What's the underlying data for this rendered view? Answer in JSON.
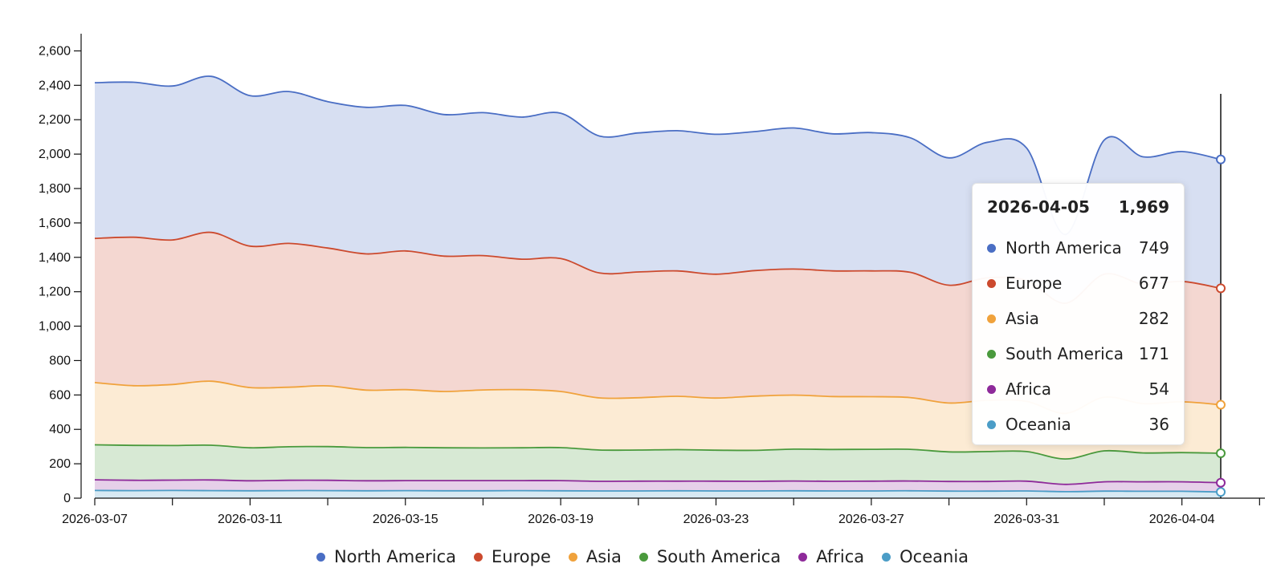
{
  "chart_data": {
    "type": "area",
    "stacked": true,
    "x": [
      "2026-03-07",
      "2026-03-08",
      "2026-03-09",
      "2026-03-10",
      "2026-03-11",
      "2026-03-12",
      "2026-03-13",
      "2026-03-14",
      "2026-03-15",
      "2026-03-16",
      "2026-03-17",
      "2026-03-18",
      "2026-03-19",
      "2026-03-20",
      "2026-03-21",
      "2026-03-22",
      "2026-03-23",
      "2026-03-24",
      "2026-03-25",
      "2026-03-26",
      "2026-03-27",
      "2026-03-28",
      "2026-03-29",
      "2026-03-30",
      "2026-03-31",
      "2026-04-01",
      "2026-04-02",
      "2026-04-03",
      "2026-04-04",
      "2026-04-05"
    ],
    "x_tick_labels": [
      "2026-03-07",
      "2026-03-11",
      "2026-03-15",
      "2026-03-19",
      "2026-03-23",
      "2026-03-27",
      "2026-03-31",
      "2026-04-04"
    ],
    "ylim": [
      0,
      2700
    ],
    "y_ticks": [
      0,
      200,
      400,
      600,
      800,
      1000,
      1200,
      1400,
      1600,
      1800,
      2000,
      2200,
      2400,
      2600
    ],
    "legend_position": "bottom",
    "series": [
      {
        "name": "Oceania",
        "color": "#4b9dc7",
        "values": [
          45,
          44,
          45,
          44,
          43,
          44,
          44,
          43,
          44,
          43,
          43,
          44,
          43,
          42,
          42,
          43,
          42,
          42,
          43,
          42,
          42,
          43,
          41,
          41,
          42,
          38,
          41,
          40,
          40,
          36
        ]
      },
      {
        "name": "Africa",
        "color": "#8e2a9a",
        "values": [
          62,
          60,
          60,
          62,
          58,
          60,
          60,
          58,
          58,
          59,
          59,
          58,
          59,
          56,
          57,
          56,
          57,
          56,
          57,
          56,
          57,
          57,
          56,
          56,
          57,
          42,
          54,
          55,
          55,
          54
        ]
      },
      {
        "name": "South America",
        "color": "#4a9a3d",
        "values": [
          203,
          203,
          201,
          202,
          192,
          195,
          196,
          193,
          193,
          191,
          190,
          191,
          192,
          182,
          181,
          183,
          180,
          180,
          185,
          185,
          185,
          184,
          172,
          174,
          172,
          148,
          180,
          168,
          170,
          171
        ]
      },
      {
        "name": "Asia",
        "color": "#f0a23c",
        "values": [
          362,
          347,
          355,
          372,
          350,
          346,
          353,
          334,
          336,
          327,
          337,
          338,
          326,
          303,
          304,
          310,
          303,
          315,
          314,
          308,
          306,
          301,
          284,
          298,
          292,
          265,
          312,
          287,
          295,
          282
        ]
      },
      {
        "name": "Europe",
        "color": "#cc4a2e",
        "values": [
          838,
          863,
          840,
          865,
          822,
          836,
          801,
          792,
          806,
          787,
          781,
          758,
          773,
          726,
          731,
          729,
          720,
          730,
          733,
          730,
          731,
          728,
          685,
          712,
          702,
          640,
          715,
          694,
          700,
          677
        ]
      },
      {
        "name": "North America",
        "color": "#4a6ec4",
        "values": [
          905,
          901,
          895,
          907,
          875,
          883,
          851,
          852,
          846,
          823,
          831,
          826,
          845,
          796,
          808,
          815,
          813,
          808,
          820,
          797,
          804,
          782,
          740,
          788,
          770,
          400,
          780,
          740,
          755,
          749
        ]
      }
    ]
  },
  "tooltip": {
    "date": "2026-04-05",
    "total": "1,969",
    "rows": [
      {
        "name": "North America",
        "value": "749",
        "color": "#4a6ec4"
      },
      {
        "name": "Europe",
        "value": "677",
        "color": "#cc4a2e"
      },
      {
        "name": "Asia",
        "value": "282",
        "color": "#f0a23c"
      },
      {
        "name": "South America",
        "value": "171",
        "color": "#4a9a3d"
      },
      {
        "name": "Africa",
        "value": "54",
        "color": "#8e2a9a"
      },
      {
        "name": "Oceania",
        "value": "36",
        "color": "#4b9dc7"
      }
    ]
  },
  "legend": [
    {
      "name": "North America",
      "color": "#4a6ec4"
    },
    {
      "name": "Europe",
      "color": "#cc4a2e"
    },
    {
      "name": "Asia",
      "color": "#f0a23c"
    },
    {
      "name": "South America",
      "color": "#4a9a3d"
    },
    {
      "name": "Africa",
      "color": "#8e2a9a"
    },
    {
      "name": "Oceania",
      "color": "#4b9dc7"
    }
  ]
}
